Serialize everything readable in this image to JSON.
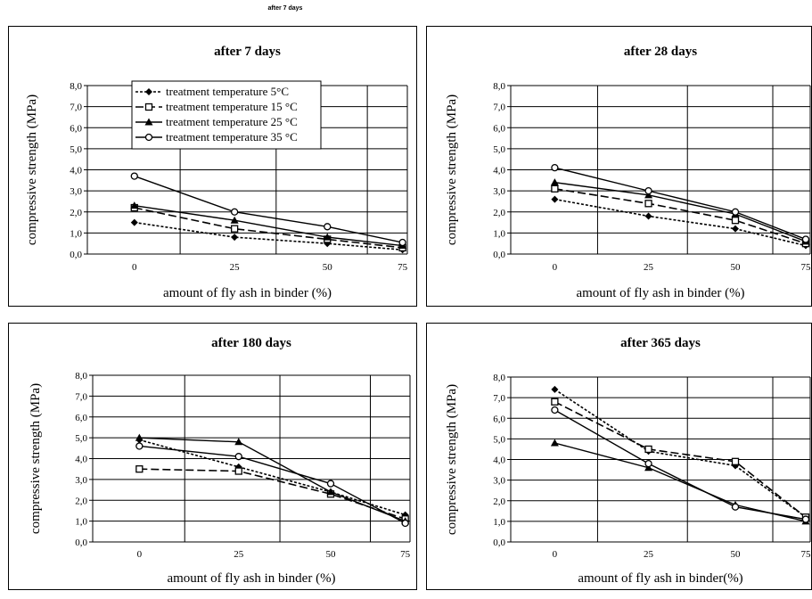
{
  "page_title": "after 7 days",
  "series_styles": [
    {
      "marker": "diamond",
      "dash": "3,2",
      "color": "#000000"
    },
    {
      "marker": "square",
      "dash": "9,4",
      "color": "#000000"
    },
    {
      "marker": "triangle",
      "dash": "",
      "color": "#000000"
    },
    {
      "marker": "circle",
      "dash": "",
      "color": "#000000"
    }
  ],
  "chart_data": [
    {
      "type": "line",
      "title": "after 7 days",
      "xlabel": "amount of fly ash in binder (%)",
      "ylabel": "compressive strength (MPa)",
      "categories": [
        "0",
        "25",
        "50",
        "75"
      ],
      "ylim": [
        0,
        8
      ],
      "yticks": [
        "0,0",
        "1,0",
        "2,0",
        "3,0",
        "4,0",
        "5,0",
        "6,0",
        "7,0",
        "8,0"
      ],
      "grid": true,
      "legend": "top",
      "series": [
        {
          "name": "treatment temperature 5°C",
          "values": [
            1.5,
            0.8,
            0.5,
            0.2
          ]
        },
        {
          "name": "treatment temperature 15 °C",
          "values": [
            2.2,
            1.2,
            0.7,
            0.3
          ]
        },
        {
          "name": "treatment temperature 25 °C",
          "values": [
            2.3,
            1.6,
            0.8,
            0.4
          ]
        },
        {
          "name": "treatment temperature 35 °C",
          "values": [
            3.7,
            2.0,
            1.3,
            0.55
          ]
        }
      ]
    },
    {
      "type": "line",
      "title": "after 28 days",
      "xlabel": "amount of fly ash in binder (%)",
      "ylabel": "compressive strength (MPa)",
      "categories": [
        "0",
        "25",
        "50",
        "75"
      ],
      "ylim": [
        0,
        8
      ],
      "yticks": [
        "0,0",
        "1,0",
        "2,0",
        "3,0",
        "4,0",
        "5,0",
        "6,0",
        "7,0",
        "8,0"
      ],
      "grid": true,
      "legend": "none",
      "series": [
        {
          "values": [
            2.6,
            1.8,
            1.2,
            0.4
          ]
        },
        {
          "values": [
            3.1,
            2.4,
            1.6,
            0.5
          ]
        },
        {
          "values": [
            3.4,
            2.8,
            1.9,
            0.6
          ]
        },
        {
          "values": [
            4.1,
            3.0,
            2.0,
            0.7
          ]
        }
      ]
    },
    {
      "type": "line",
      "title": "after 180 days",
      "xlabel": "amount of fly ash in binder (%)",
      "ylabel": "compressive strength (MPa)",
      "categories": [
        "0",
        "25",
        "50",
        "75"
      ],
      "ylim": [
        0,
        8
      ],
      "yticks": [
        "0,0",
        "1,0",
        "2,0",
        "3,0",
        "4,0",
        "5,0",
        "6,0",
        "7,0",
        "8,0"
      ],
      "grid": true,
      "legend": "none",
      "series": [
        {
          "values": [
            4.9,
            3.6,
            2.4,
            1.3
          ]
        },
        {
          "values": [
            3.5,
            3.4,
            2.3,
            1.1
          ]
        },
        {
          "values": [
            5.0,
            4.8,
            2.4,
            1.0
          ]
        },
        {
          "values": [
            4.6,
            4.1,
            2.8,
            0.9
          ]
        }
      ]
    },
    {
      "type": "line",
      "title": "after 365 days",
      "xlabel": "amount of fly ash in binder(%)",
      "ylabel": "compressive strength (MPa)",
      "categories": [
        "0",
        "25",
        "50",
        "75"
      ],
      "ylim": [
        0,
        8
      ],
      "yticks": [
        "0,0",
        "1,0",
        "2,0",
        "3,0",
        "4,0",
        "5,0",
        "6,0",
        "7,0",
        "8,0"
      ],
      "grid": true,
      "legend": "none",
      "series": [
        {
          "values": [
            7.4,
            4.4,
            3.7,
            1.2
          ]
        },
        {
          "values": [
            6.8,
            4.5,
            3.9,
            1.2
          ]
        },
        {
          "values": [
            4.8,
            3.6,
            1.8,
            1.0
          ]
        },
        {
          "values": [
            6.4,
            3.8,
            1.7,
            1.1
          ]
        }
      ]
    }
  ]
}
